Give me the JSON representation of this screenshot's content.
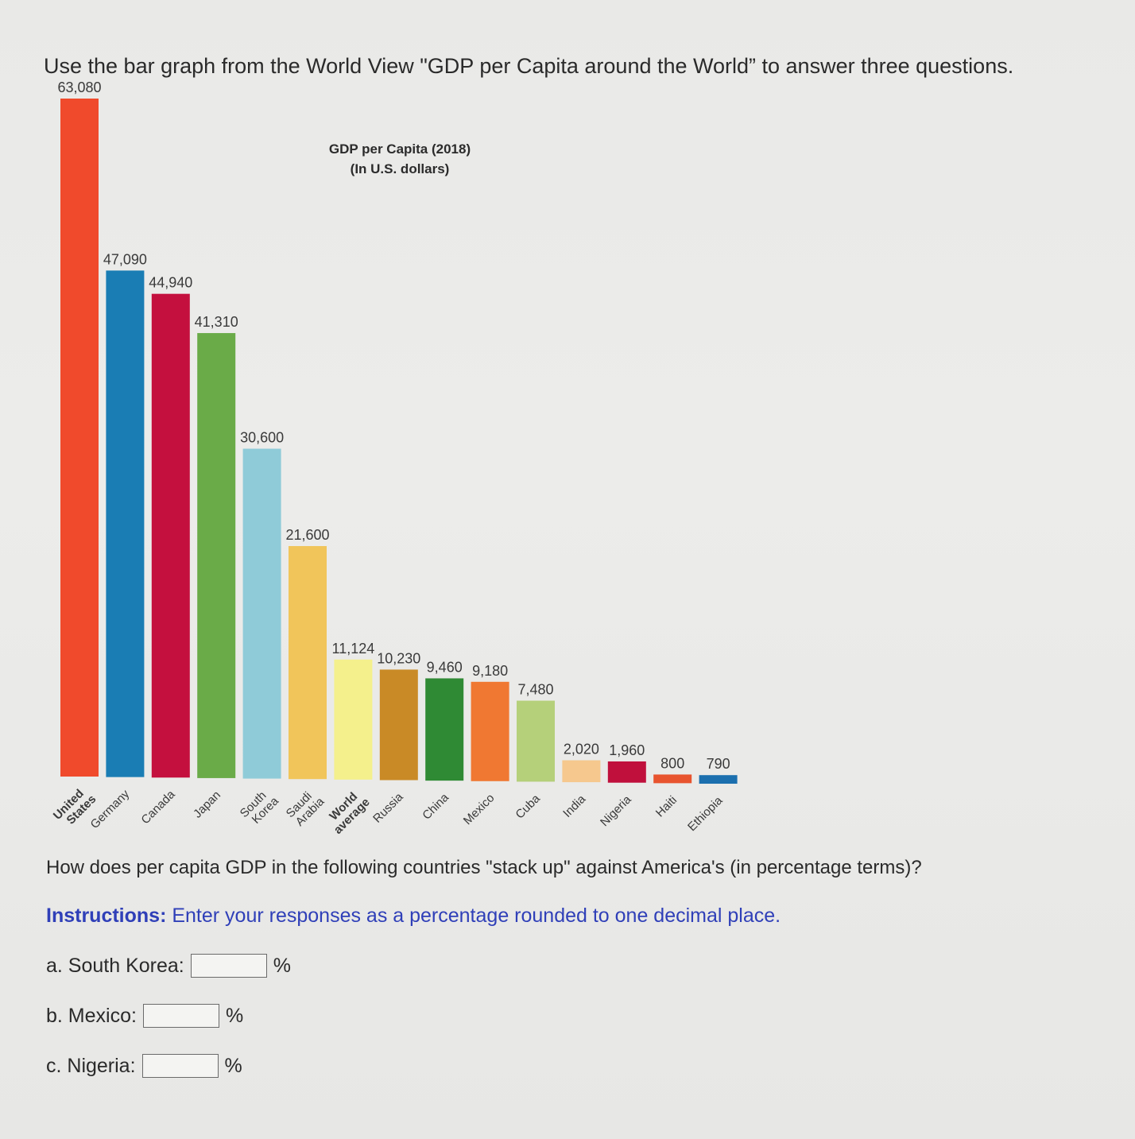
{
  "question": {
    "header": "Use the bar graph from the World View \"GDP per Capita around the World” to answer three questions.",
    "stack_question": "How does per capita GDP in the following countries \"stack up\" against America's (in percentage terms)?",
    "instructions_lead": "Instructions:",
    "instructions_text": " Enter your responses as a percentage rounded to one decimal place.",
    "answers": [
      {
        "label": "a. South Korea:",
        "value": "",
        "unit": "%"
      },
      {
        "label": "b. Mexico:",
        "value": "",
        "unit": "%"
      },
      {
        "label": "c. Nigeria:",
        "value": "",
        "unit": "%"
      }
    ]
  },
  "chart_data": {
    "type": "bar",
    "title_line1": "GDP per Capita (2018)",
    "title_line2": "(In U.S. dollars)",
    "xlabel": "",
    "ylabel": "",
    "ylim": [
      0,
      63080
    ],
    "grid": false,
    "categories": [
      "United States",
      "Germany",
      "Canada",
      "Japan",
      "South Korea",
      "Saudi Arabia",
      "World average",
      "Russia",
      "China",
      "Mexico",
      "Cuba",
      "India",
      "Nigeria",
      "Haiti",
      "Ethiopia"
    ],
    "category_label_lines": [
      [
        "United",
        "States"
      ],
      [
        "Germany"
      ],
      [
        "Canada"
      ],
      [
        "Japan"
      ],
      [
        "South",
        "Korea"
      ],
      [
        "Saudi",
        "Arabia"
      ],
      [
        "World",
        "average"
      ],
      [
        "Russia"
      ],
      [
        "China"
      ],
      [
        "Mexico"
      ],
      [
        "Cuba"
      ],
      [
        "India"
      ],
      [
        "Nigeria"
      ],
      [
        "Haiti"
      ],
      [
        "Ethiopia"
      ]
    ],
    "bold_categories": [
      "United States",
      "World average"
    ],
    "values": [
      63080,
      47090,
      44940,
      41310,
      30600,
      21600,
      11124,
      10230,
      9460,
      9180,
      7480,
      2020,
      1960,
      800,
      790
    ],
    "value_labels": [
      "63,080",
      "47,090",
      "44,940",
      "41,310",
      "30,600",
      "21,600",
      "11,124",
      "10,230",
      "9,460",
      "9,180",
      "7,480",
      "2,020",
      "1,960",
      "800",
      "790"
    ],
    "colors": [
      "#f04a2c",
      "#1a7db4",
      "#c4103e",
      "#6aab48",
      "#8fcbd8",
      "#f1c55a",
      "#f4f08c",
      "#c98a26",
      "#2f8a34",
      "#f07832",
      "#b5d07a",
      "#f6c88e",
      "#c0103c",
      "#e8542e",
      "#1b6fae"
    ]
  }
}
